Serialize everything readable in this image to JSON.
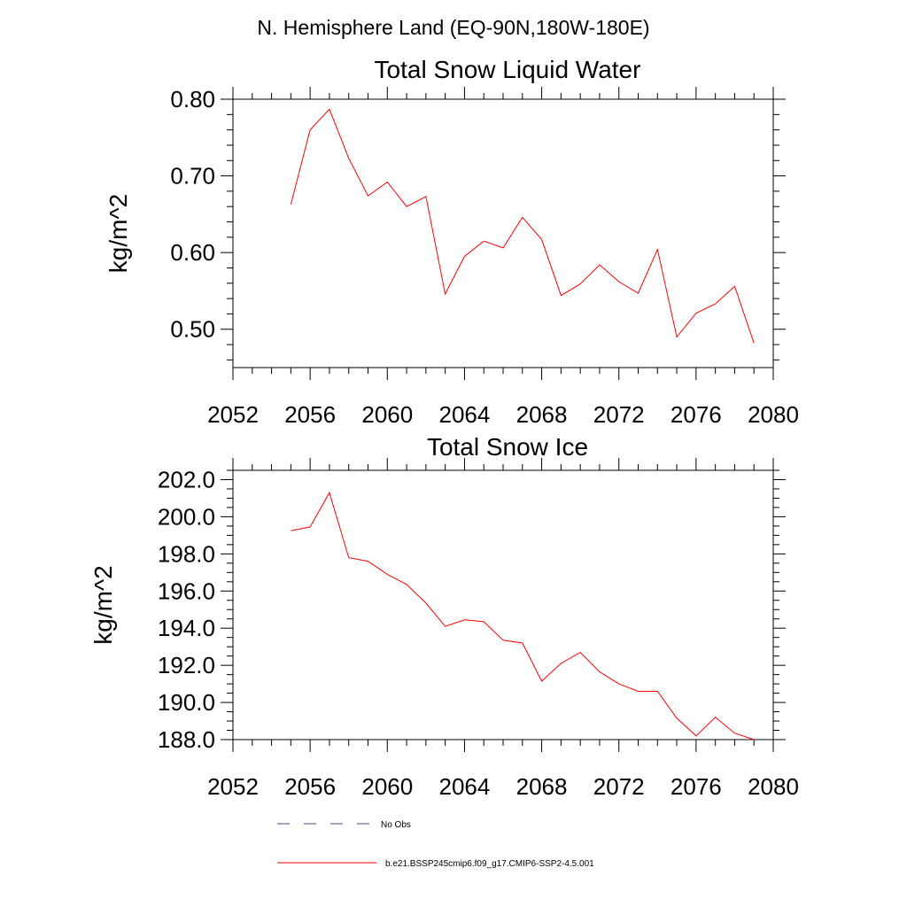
{
  "figure": {
    "title": "N. Hemisphere Land (EQ-90N,180W-180E)"
  },
  "chart_data": [
    {
      "type": "line",
      "title": "Total Snow Liquid Water",
      "xlabel": "",
      "ylabel": "kg/m^2",
      "xlim": [
        2052,
        2080
      ],
      "ylim": [
        0.45,
        0.8
      ],
      "xticks": [
        2052,
        2056,
        2060,
        2064,
        2068,
        2072,
        2076,
        2080
      ],
      "xtick_labels": [
        "2052",
        "2056",
        "2060",
        "2064",
        "2068",
        "2072",
        "2076",
        "2080"
      ],
      "yticks": [
        0.5,
        0.6,
        0.7,
        0.8
      ],
      "ytick_labels": [
        "0.50",
        "0.60",
        "0.70",
        "0.80"
      ],
      "grid": false,
      "series": [
        {
          "name": "b.e21.BSSP245cmip6.f09_g17.CMIP6-SSP2-4.5.001",
          "color": "#ff0000",
          "x": [
            2055,
            2056,
            2057,
            2058,
            2059,
            2060,
            2061,
            2062,
            2063,
            2064,
            2065,
            2066,
            2067,
            2068,
            2069,
            2070,
            2071,
            2072,
            2073,
            2074,
            2075,
            2076,
            2077,
            2078,
            2079
          ],
          "y": [
            0.663,
            0.76,
            0.787,
            0.723,
            0.674,
            0.692,
            0.66,
            0.673,
            0.546,
            0.595,
            0.615,
            0.606,
            0.646,
            0.617,
            0.544,
            0.559,
            0.584,
            0.562,
            0.547,
            0.604,
            0.49,
            0.521,
            0.533,
            0.556,
            0.482
          ]
        }
      ]
    },
    {
      "type": "line",
      "title": "Total Snow Ice",
      "xlabel": "",
      "ylabel": "kg/m^2",
      "xlim": [
        2052,
        2080
      ],
      "ylim": [
        188.0,
        202.5
      ],
      "xticks": [
        2052,
        2056,
        2060,
        2064,
        2068,
        2072,
        2076,
        2080
      ],
      "xtick_labels": [
        "2052",
        "2056",
        "2060",
        "2064",
        "2068",
        "2072",
        "2076",
        "2080"
      ],
      "yticks": [
        188,
        190,
        192,
        194,
        196,
        198,
        200,
        202
      ],
      "ytick_labels": [
        "188.0",
        "190.0",
        "192.0",
        "194.0",
        "196.0",
        "198.0",
        "200.0",
        "202.0"
      ],
      "grid": false,
      "series": [
        {
          "name": "b.e21.BSSP245cmip6.f09_g17.CMIP6-SSP2-4.5.001",
          "color": "#ff0000",
          "x": [
            2055,
            2056,
            2057,
            2058,
            2059,
            2060,
            2061,
            2062,
            2063,
            2064,
            2065,
            2066,
            2067,
            2068,
            2069,
            2070,
            2071,
            2072,
            2073,
            2074,
            2075,
            2076,
            2077,
            2078,
            2079
          ],
          "y": [
            199.25,
            199.45,
            201.3,
            197.8,
            197.6,
            196.9,
            196.35,
            195.35,
            194.1,
            194.45,
            194.35,
            193.35,
            193.2,
            191.15,
            192.1,
            192.7,
            191.65,
            191.0,
            190.6,
            190.6,
            189.15,
            188.2,
            189.2,
            188.35,
            188.0
          ]
        }
      ]
    }
  ],
  "legend": {
    "placement": "bottom",
    "items": [
      {
        "label": "No Obs",
        "color": "#4a4a8a",
        "dashed": true
      },
      {
        "label": "b.e21.BSSP245cmip6.f09_g17.CMIP6-SSP2-4.5.001",
        "color": "#ff0000",
        "dashed": false
      }
    ]
  }
}
